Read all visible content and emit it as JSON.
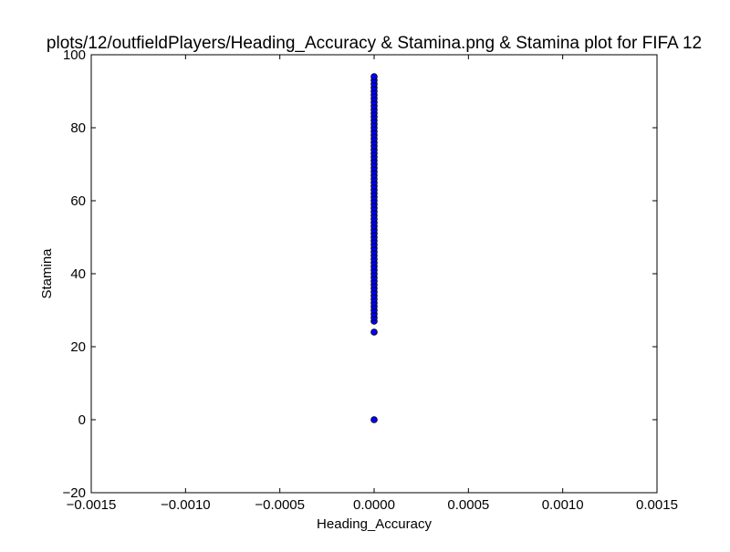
{
  "chart_data": {
    "type": "scatter",
    "title": "plots/12/outfieldPlayers/Heading_Accuracy & Stamina.png & Stamina plot for FIFA 12",
    "xlabel": "Heading_Accuracy",
    "ylabel": "Stamina",
    "xlim": [
      -0.0015,
      0.0015
    ],
    "ylim": [
      -20,
      100
    ],
    "xticks": [
      -0.0015,
      -0.001,
      -0.0005,
      0,
      0.0005,
      0.001,
      0.0015
    ],
    "yticks": [
      -20,
      0,
      20,
      40,
      60,
      80,
      100
    ],
    "xtick_labels": [
      "−0.0015",
      "−0.0010",
      "−0.0005",
      "0.0000",
      "0.0005",
      "0.0010",
      "0.0015"
    ],
    "ytick_labels": [
      "−20",
      "0",
      "20",
      "40",
      "60",
      "80",
      "100"
    ],
    "grid": false,
    "marker_color": "#0000ff",
    "x": [
      0,
      0,
      0,
      0,
      0,
      0,
      0,
      0,
      0,
      0,
      0,
      0,
      0,
      0,
      0,
      0,
      0,
      0,
      0,
      0,
      0,
      0,
      0,
      0,
      0,
      0,
      0,
      0,
      0,
      0,
      0,
      0,
      0,
      0,
      0,
      0,
      0,
      0,
      0,
      0,
      0,
      0,
      0,
      0,
      0,
      0,
      0,
      0,
      0,
      0,
      0,
      0,
      0,
      0,
      0,
      0,
      0,
      0,
      0,
      0,
      0,
      0,
      0,
      0,
      0,
      0,
      0,
      0,
      0,
      0
    ],
    "y": [
      0,
      24,
      27,
      28,
      29,
      30,
      31,
      32,
      33,
      34,
      35,
      36,
      37,
      38,
      39,
      40,
      41,
      42,
      43,
      44,
      45,
      46,
      47,
      48,
      49,
      50,
      51,
      52,
      53,
      54,
      55,
      56,
      57,
      58,
      59,
      60,
      61,
      62,
      63,
      64,
      65,
      66,
      67,
      68,
      69,
      70,
      71,
      72,
      73,
      74,
      75,
      76,
      77,
      78,
      79,
      80,
      81,
      82,
      83,
      84,
      85,
      86,
      87,
      88,
      89,
      90,
      91,
      92,
      93,
      94
    ]
  }
}
